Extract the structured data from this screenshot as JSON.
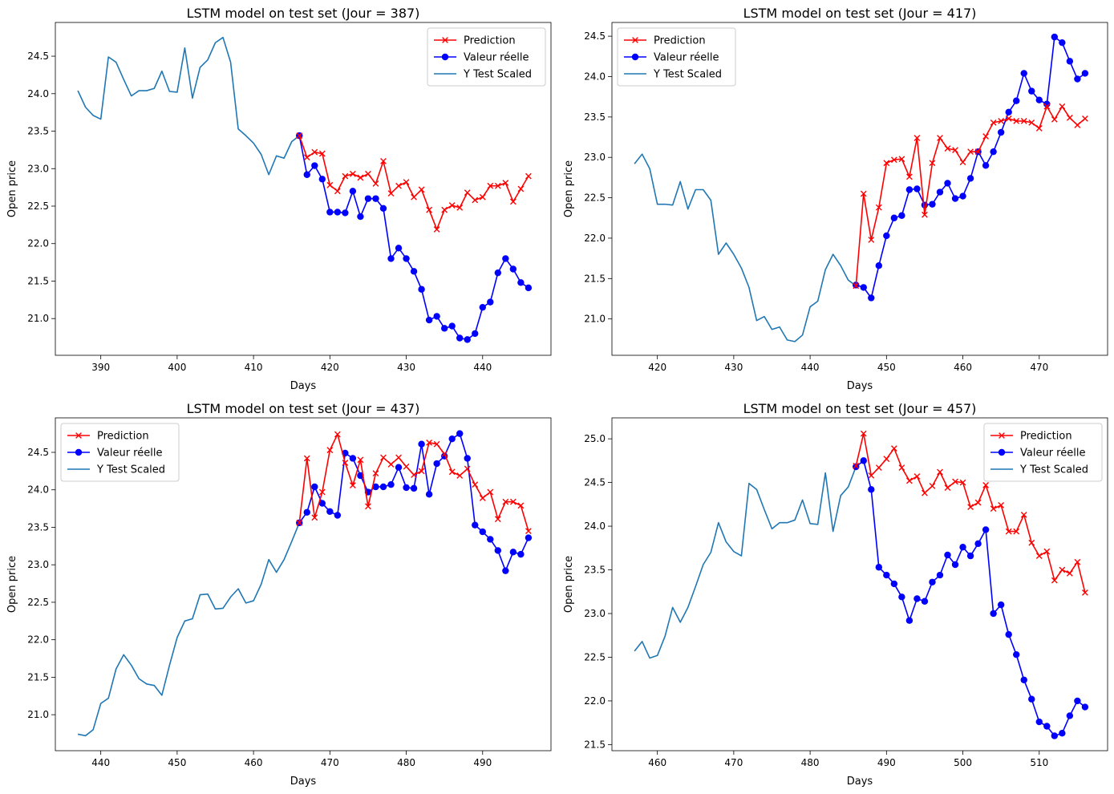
{
  "chart_data": [
    {
      "type": "line",
      "title": "LSTM model on test set (Jour = 387)",
      "xlabel": "Days",
      "ylabel": "Open price",
      "xlim": [
        384.05,
        448.95
      ],
      "ylim": [
        20.51,
        24.95
      ],
      "xticks": [
        390,
        400,
        410,
        420,
        430,
        440
      ],
      "yticks": [
        21.0,
        21.5,
        22.0,
        22.5,
        23.0,
        23.5,
        24.0,
        24.5
      ],
      "legend_position": "upper right",
      "series": [
        {
          "name": "Prediction",
          "color": "#ff0000",
          "marker": "x",
          "x_start": 416,
          "values": [
            23.44,
            23.15,
            23.22,
            23.2,
            22.78,
            22.7,
            22.9,
            22.93,
            22.88,
            22.93,
            22.8,
            23.1,
            22.67,
            22.77,
            22.82,
            22.62,
            22.72,
            22.45,
            22.19,
            22.45,
            22.51,
            22.48,
            22.68,
            22.58,
            22.62,
            22.77,
            22.77,
            22.81,
            22.56,
            22.73,
            22.9
          ]
        },
        {
          "name": "Valeur réelle",
          "color": "#0000ff",
          "marker": "o",
          "x_start": 416,
          "values": [
            23.44,
            22.92,
            23.04,
            22.86,
            22.42,
            22.42,
            22.41,
            22.7,
            22.36,
            22.6,
            22.6,
            22.47,
            21.8,
            21.94,
            21.8,
            21.63,
            21.39,
            20.98,
            21.03,
            20.87,
            20.9,
            20.74,
            20.72,
            20.8,
            21.15,
            21.22,
            21.61,
            21.8,
            21.66,
            21.48,
            21.41
          ]
        },
        {
          "name": "Y Test Scaled",
          "color": "#1f77b4",
          "marker": "",
          "x_start": 387,
          "values": [
            24.04,
            23.82,
            23.71,
            23.66,
            24.49,
            24.42,
            24.19,
            23.97,
            24.04,
            24.04,
            24.07,
            24.3,
            24.03,
            24.02,
            24.61,
            23.94,
            24.35,
            24.45,
            24.68,
            24.75,
            24.42,
            23.53,
            23.44,
            23.34,
            23.19,
            22.92,
            23.17,
            23.14,
            23.36,
            23.44
          ]
        }
      ]
    },
    {
      "type": "line",
      "title": "LSTM model on test set (Jour = 417)",
      "xlabel": "Days",
      "ylabel": "Open price",
      "xlim": [
        414.05,
        478.95
      ],
      "ylim": [
        20.55,
        24.67
      ],
      "xticks": [
        420,
        430,
        440,
        450,
        460,
        470
      ],
      "yticks": [
        21.0,
        21.5,
        22.0,
        22.5,
        23.0,
        23.5,
        24.0,
        24.5
      ],
      "legend_position": "upper left",
      "series": [
        {
          "name": "Prediction",
          "color": "#ff0000",
          "marker": "x",
          "x_start": 446,
          "values": [
            21.41,
            22.55,
            21.98,
            22.38,
            22.93,
            22.97,
            22.98,
            22.76,
            23.24,
            22.29,
            22.93,
            23.24,
            23.11,
            23.09,
            22.94,
            23.07,
            23.07,
            23.26,
            23.43,
            23.45,
            23.48,
            23.45,
            23.45,
            23.43,
            23.36,
            23.63,
            23.47,
            23.63,
            23.49,
            23.4,
            23.48
          ]
        },
        {
          "name": "Valeur réelle",
          "color": "#0000ff",
          "marker": "o",
          "x_start": 446,
          "values": [
            21.42,
            21.39,
            21.26,
            21.66,
            22.03,
            22.25,
            22.28,
            22.6,
            22.61,
            22.41,
            22.42,
            22.57,
            22.68,
            22.49,
            22.52,
            22.74,
            23.07,
            22.9,
            23.07,
            23.31,
            23.56,
            23.7,
            24.04,
            23.82,
            23.71,
            23.66,
            24.49,
            24.42,
            24.19,
            23.97,
            24.04
          ]
        },
        {
          "name": "Y Test Scaled",
          "color": "#1f77b4",
          "marker": "",
          "x_start": 417,
          "values": [
            22.92,
            23.04,
            22.86,
            22.42,
            22.42,
            22.41,
            22.7,
            22.36,
            22.6,
            22.6,
            22.47,
            21.8,
            21.94,
            21.8,
            21.63,
            21.39,
            20.98,
            21.03,
            20.87,
            20.9,
            20.74,
            20.72,
            20.8,
            21.15,
            21.22,
            21.61,
            21.8,
            21.66,
            21.48,
            21.41
          ]
        }
      ]
    },
    {
      "type": "line",
      "title": "LSTM model on test set (Jour = 437)",
      "xlabel": "Days",
      "ylabel": "Open price",
      "xlim": [
        434.05,
        498.95
      ],
      "ylim": [
        20.52,
        24.96
      ],
      "xticks": [
        440,
        450,
        460,
        470,
        480,
        490
      ],
      "yticks": [
        21.0,
        21.5,
        22.0,
        22.5,
        23.0,
        23.5,
        24.0,
        24.5
      ],
      "legend_position": "upper left",
      "series": [
        {
          "name": "Prediction",
          "color": "#ff0000",
          "marker": "x",
          "x_start": 466,
          "values": [
            23.56,
            24.42,
            23.63,
            23.97,
            24.53,
            24.74,
            24.36,
            24.06,
            24.4,
            23.78,
            24.22,
            24.43,
            24.34,
            24.43,
            24.31,
            24.2,
            24.25,
            24.63,
            24.61,
            24.48,
            24.24,
            24.19,
            24.28,
            24.07,
            23.89,
            23.97,
            23.61,
            23.84,
            23.84,
            23.79,
            23.45
          ]
        },
        {
          "name": "Valeur réelle",
          "color": "#0000ff",
          "marker": "o",
          "x_start": 466,
          "values": [
            23.56,
            23.7,
            24.04,
            23.82,
            23.71,
            23.66,
            24.49,
            24.42,
            24.19,
            23.97,
            24.04,
            24.04,
            24.07,
            24.3,
            24.03,
            24.02,
            24.61,
            23.94,
            24.35,
            24.45,
            24.68,
            24.75,
            24.42,
            23.53,
            23.44,
            23.34,
            23.19,
            22.92,
            23.17,
            23.14,
            23.36
          ]
        },
        {
          "name": "Y Test Scaled",
          "color": "#1f77b4",
          "marker": "",
          "x_start": 437,
          "values": [
            20.74,
            20.72,
            20.8,
            21.15,
            21.22,
            21.61,
            21.8,
            21.66,
            21.48,
            21.41,
            21.39,
            21.26,
            21.66,
            22.03,
            22.25,
            22.28,
            22.6,
            22.61,
            22.41,
            22.42,
            22.57,
            22.68,
            22.49,
            22.52,
            22.74,
            23.07,
            22.9,
            23.07,
            23.31,
            23.56
          ]
        }
      ]
    },
    {
      "type": "line",
      "title": "LSTM model on test set (Jour = 457)",
      "xlabel": "Days",
      "ylabel": "Open price",
      "xlim": [
        454.05,
        518.95
      ],
      "ylim": [
        21.43,
        25.24
      ],
      "xticks": [
        460,
        470,
        480,
        490,
        500,
        510
      ],
      "yticks": [
        21.5,
        22.0,
        22.5,
        23.0,
        23.5,
        24.0,
        24.5,
        25.0
      ],
      "legend_position": "upper right",
      "series": [
        {
          "name": "Prediction",
          "color": "#ff0000",
          "marker": "x",
          "x_start": 486,
          "values": [
            24.69,
            25.06,
            24.58,
            24.67,
            24.77,
            24.89,
            24.67,
            24.52,
            24.57,
            24.38,
            24.46,
            24.62,
            24.44,
            24.51,
            24.5,
            24.22,
            24.27,
            24.47,
            24.2,
            24.24,
            23.94,
            23.94,
            24.13,
            23.81,
            23.66,
            23.71,
            23.38,
            23.5,
            23.46,
            23.59,
            23.24
          ]
        },
        {
          "name": "Valeur réelle",
          "color": "#0000ff",
          "marker": "o",
          "x_start": 486,
          "values": [
            24.68,
            24.75,
            24.42,
            23.53,
            23.44,
            23.34,
            23.19,
            22.92,
            23.17,
            23.14,
            23.36,
            23.44,
            23.67,
            23.56,
            23.76,
            23.66,
            23.8,
            23.96,
            23.0,
            23.1,
            22.76,
            22.53,
            22.24,
            22.02,
            21.76,
            21.71,
            21.6,
            21.63,
            21.83,
            22.0,
            21.93
          ]
        },
        {
          "name": "Y Test Scaled",
          "color": "#1f77b4",
          "marker": "",
          "x_start": 457,
          "values": [
            22.57,
            22.68,
            22.49,
            22.52,
            22.74,
            23.07,
            22.9,
            23.07,
            23.31,
            23.56,
            23.7,
            24.04,
            23.82,
            23.71,
            23.66,
            24.49,
            24.42,
            24.19,
            23.97,
            24.04,
            24.04,
            24.07,
            24.3,
            24.03,
            24.02,
            24.61,
            23.94,
            24.35,
            24.45,
            24.68
          ]
        }
      ]
    }
  ]
}
